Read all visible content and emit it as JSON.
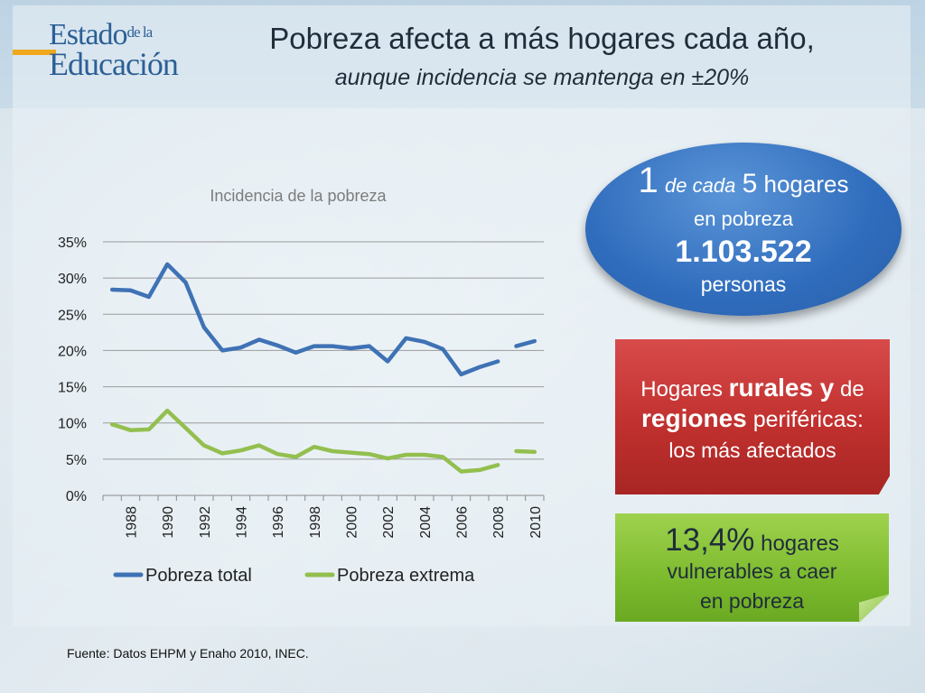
{
  "header": {
    "logo_line1": "Estado",
    "logo_small": "de la",
    "logo_line2": "Educación",
    "title": "Pobreza afecta a más hogares cada año,",
    "subtitle": "aunque incidencia se mantenga en ±20%"
  },
  "callouts": {
    "oval": {
      "num1": "1",
      "de_cada": "de cada",
      "num5": "5",
      "hogares": "hogares",
      "en_pobreza": "en pobreza",
      "personas_num": "1.103.522",
      "personas": "personas"
    },
    "red": {
      "part1": "Hogares",
      "bold1": "rurales y",
      "part2": "de",
      "bold2": "regiones",
      "part3": "periféricas:",
      "part4": "los más afectados"
    },
    "green": {
      "pct": "13,4%",
      "hogares": "hogares",
      "line2": "vulnerables a caer",
      "line3": "en pobreza"
    }
  },
  "source": "Fuente: Datos EHPM y Enaho 2010, INEC.",
  "colors": {
    "total": "#3f72b5",
    "extrema": "#93bf4f",
    "oval": "#2f6cbc",
    "red": "#c0302e",
    "green": "#7cba2e"
  },
  "chart_data": {
    "type": "line",
    "title": "Incidencia de la pobreza",
    "ylim": [
      0,
      35
    ],
    "yticks": [
      "0%",
      "5%",
      "10%",
      "15%",
      "20%",
      "25%",
      "30%",
      "35%"
    ],
    "xtick_labels": [
      "1988",
      "1990",
      "1992",
      "1994",
      "1996",
      "1998",
      "2000",
      "2002",
      "2004",
      "2006",
      "2008",
      "2010"
    ],
    "x": [
      1987,
      1988,
      1989,
      1990,
      1991,
      1992,
      1993,
      1994,
      1995,
      1996,
      1997,
      1998,
      1999,
      2000,
      2001,
      2002,
      2003,
      2004,
      2005,
      2006,
      2007,
      2008,
      2009,
      2010
    ],
    "legend_position": "bottom",
    "series": [
      {
        "name": "Pobreza total",
        "segments": [
          {
            "x": [
              1987,
              1988,
              1989,
              1990,
              1991,
              1992,
              1993,
              1994,
              1995,
              1996,
              1997,
              1998,
              1999,
              2000,
              2001,
              2002,
              2003,
              2004,
              2005,
              2006,
              2007,
              2008
            ],
            "values": [
              28.4,
              28.3,
              27.4,
              31.9,
              29.4,
              23.2,
              20.0,
              20.4,
              21.5,
              20.7,
              19.7,
              20.6,
              20.6,
              20.3,
              20.6,
              18.5,
              21.7,
              21.2,
              20.2,
              16.7,
              17.7,
              18.5
            ]
          },
          {
            "x": [
              2009,
              2010
            ],
            "values": [
              20.6,
              21.3
            ]
          }
        ]
      },
      {
        "name": "Pobreza extrema",
        "segments": [
          {
            "x": [
              1987,
              1988,
              1989,
              1990,
              1991,
              1992,
              1993,
              1994,
              1995,
              1996,
              1997,
              1998,
              1999,
              2000,
              2001,
              2002,
              2003,
              2004,
              2005,
              2006,
              2007,
              2008
            ],
            "values": [
              9.8,
              9.0,
              9.1,
              11.7,
              9.3,
              6.9,
              5.8,
              6.2,
              6.9,
              5.7,
              5.3,
              6.7,
              6.1,
              5.9,
              5.7,
              5.1,
              5.6,
              5.6,
              5.3,
              3.3,
              3.5,
              4.2
            ]
          },
          {
            "x": [
              2009,
              2010
            ],
            "values": [
              6.1,
              6.0
            ]
          }
        ]
      }
    ]
  }
}
